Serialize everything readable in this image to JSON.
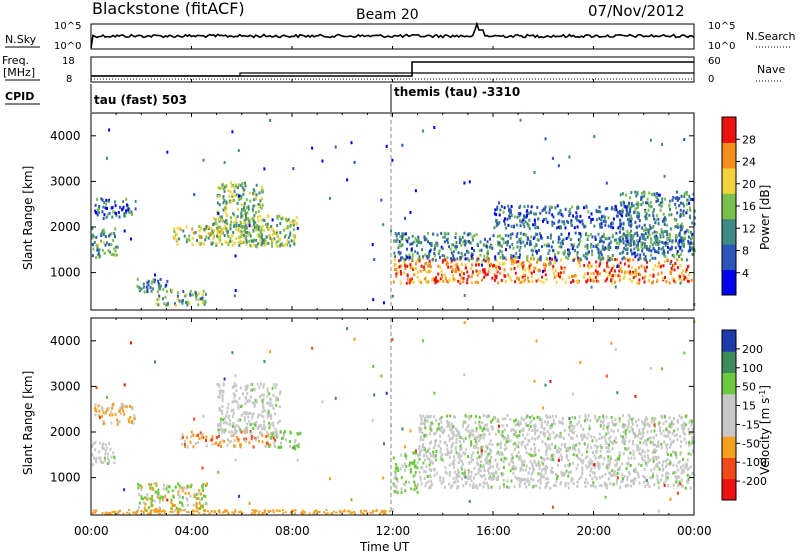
{
  "header": {
    "station": "Blackstone (fitACF)",
    "beam": "Beam 20",
    "date": "07/Nov/2012"
  },
  "panels": {
    "nsky": {
      "label": "N.Sky",
      "ticks": [
        "10^5",
        "10^0"
      ],
      "right_ticks": [
        "10^5",
        "10^0"
      ],
      "right_label": "N.Search"
    },
    "freq": {
      "label_line1": "Freq.",
      "label_line2": "[MHz]",
      "ticks": [
        "18",
        "8"
      ],
      "right_ticks": [
        "60",
        "0"
      ],
      "right_label": "Nave"
    },
    "cpid": {
      "label": "CPID",
      "modes": [
        {
          "text": "tau (fast) 503",
          "start_hour": 0
        },
        {
          "text": "themis (tau) -3310",
          "start_hour": 12
        }
      ]
    }
  },
  "time_axis": {
    "title": "Time UT",
    "ticks": [
      "00:00",
      "04:00",
      "08:00",
      "12:00",
      "16:00",
      "20:00",
      "00:00"
    ]
  },
  "chart_data": [
    {
      "type": "heatmap",
      "title": "",
      "xlabel": "Time UT",
      "ylabel": "Slant Range [km]",
      "xlim": [
        0,
        24
      ],
      "ylim": [
        180,
        4500
      ],
      "yticks": [
        1000,
        2000,
        3000,
        4000
      ],
      "colorbar": {
        "label": "Power [dB]",
        "ticks": [
          "4",
          "8",
          "12",
          "16",
          "20",
          "24",
          "28"
        ],
        "colors": [
          "#0000ee",
          "#2b55b8",
          "#3f8a82",
          "#79bf4c",
          "#f2d33c",
          "#f48f1e",
          "#ee1111"
        ]
      },
      "regions": [
        {
          "t0": 0.1,
          "t1": 1.8,
          "r0": 2200,
          "r1": 2650,
          "level": 0.25
        },
        {
          "t0": 0.0,
          "t1": 1.0,
          "r0": 1350,
          "r1": 2000,
          "level": 0.35
        },
        {
          "t0": 1.8,
          "t1": 3.2,
          "r0": 600,
          "r1": 900,
          "level": 0.3
        },
        {
          "t0": 2.5,
          "t1": 4.6,
          "r0": 300,
          "r1": 650,
          "level": 0.45
        },
        {
          "t0": 3.2,
          "t1": 7.3,
          "r0": 1650,
          "r1": 2050,
          "level": 0.55
        },
        {
          "t0": 4.8,
          "t1": 8.2,
          "r0": 1600,
          "r1": 2300,
          "level": 0.5
        },
        {
          "t0": 5.0,
          "t1": 6.8,
          "r0": 2000,
          "r1": 3000,
          "level": 0.5
        },
        {
          "t0": 12.0,
          "t1": 23.9,
          "r0": 800,
          "r1": 1350,
          "level": 0.85
        },
        {
          "t0": 12.0,
          "t1": 24.0,
          "r0": 1300,
          "r1": 1900,
          "level": 0.3
        },
        {
          "t0": 16.0,
          "t1": 21.5,
          "r0": 2000,
          "r1": 2500,
          "level": 0.2
        },
        {
          "t0": 21.0,
          "t1": 24.0,
          "r0": 1500,
          "r1": 2800,
          "level": 0.3
        }
      ]
    },
    {
      "type": "heatmap",
      "title": "",
      "xlabel": "Time UT",
      "ylabel": "Slant Range [km]",
      "xlim": [
        0,
        24
      ],
      "ylim": [
        180,
        4500
      ],
      "yticks": [
        1000,
        2000,
        3000,
        4000
      ],
      "colorbar": {
        "label": "Velocity [m s^-1]",
        "ticks": [
          "-200",
          "-100",
          "-50",
          "-15",
          "15",
          "50",
          "100",
          "200"
        ],
        "colors": [
          "#ee1111",
          "#f04a1a",
          "#f6a021",
          "#c8c8c8",
          "#c8c8c8",
          "#6cc83c",
          "#3c8c5a",
          "#1e3ca8"
        ]
      },
      "regions": [
        {
          "t0": 0.1,
          "t1": 1.8,
          "r0": 2200,
          "r1": 2650,
          "level": "orange"
        },
        {
          "t0": 0.0,
          "t1": 1.0,
          "r0": 1300,
          "r1": 1800,
          "level": "gray"
        },
        {
          "t0": 1.8,
          "t1": 4.6,
          "r0": 300,
          "r1": 900,
          "level": "mixed"
        },
        {
          "t0": 3.5,
          "t1": 7.3,
          "r0": 1700,
          "r1": 2050,
          "level": "orange-red"
        },
        {
          "t0": 5.0,
          "t1": 7.5,
          "r0": 2000,
          "r1": 3100,
          "level": "gray"
        },
        {
          "t0": 7.0,
          "t1": 8.3,
          "r0": 1650,
          "r1": 2050,
          "level": "green"
        },
        {
          "t0": 12.0,
          "t1": 13.0,
          "r0": 700,
          "r1": 1600,
          "level": "green"
        },
        {
          "t0": 13.0,
          "t1": 23.9,
          "r0": 800,
          "r1": 1400,
          "level": "gray"
        },
        {
          "t0": 13.0,
          "t1": 24.0,
          "r0": 1400,
          "r1": 2400,
          "level": "gray-sparse"
        }
      ]
    }
  ]
}
